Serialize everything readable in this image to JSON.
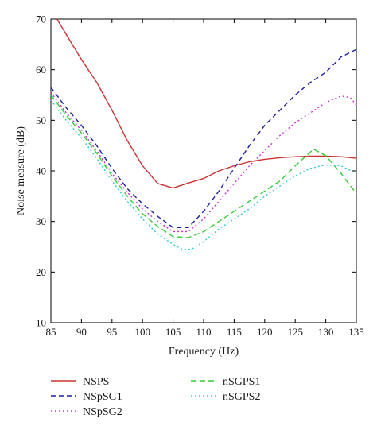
{
  "chart_data": {
    "type": "line",
    "title": "",
    "xlabel": "Frequency (Hz)",
    "ylabel": "Noise measure (dB)",
    "xlim": [
      85,
      135
    ],
    "ylim": [
      10,
      70
    ],
    "xticks": [
      85,
      90,
      95,
      100,
      105,
      110,
      115,
      120,
      125,
      130,
      135
    ],
    "yticks": [
      10,
      20,
      30,
      40,
      50,
      60,
      70
    ],
    "grid": false,
    "legend_position": "bottom",
    "series": [
      {
        "name": "NSPS",
        "color": "#cc3333",
        "dash": "solid",
        "x": [
          86,
          88,
          90,
          92.5,
          95,
          97.5,
          100,
          102.5,
          105,
          107.5,
          110,
          112.5,
          115,
          117.5,
          120,
          122.5,
          125,
          127.5,
          130,
          132.5,
          135
        ],
        "y": [
          70,
          66,
          62,
          57.5,
          52,
          46,
          41,
          37.5,
          36.6,
          37.6,
          38.5,
          40,
          41,
          41.8,
          42.3,
          42.6,
          42.8,
          42.9,
          42.9,
          42.8,
          42.5
        ]
      },
      {
        "name": "NSpSG1",
        "color": "#1f1fa0",
        "dash": "6,4",
        "x": [
          85,
          87.5,
          90,
          92.5,
          95,
          97.5,
          100,
          102.5,
          105,
          107.5,
          110,
          112.5,
          115,
          117.5,
          120,
          122.5,
          125,
          127.5,
          130,
          132.5,
          135
        ],
        "y": [
          56.5,
          52.5,
          49,
          45,
          40.5,
          36.5,
          33.5,
          31,
          28.8,
          28.8,
          32,
          36,
          40.5,
          45,
          49,
          52,
          55,
          57.5,
          59.5,
          62.5,
          64
        ]
      },
      {
        "name": "NSpSG2",
        "color": "#cc33cc",
        "dash": "2,3",
        "x": [
          85,
          87.5,
          90,
          92.5,
          95,
          97.5,
          100,
          102.5,
          105,
          107.5,
          110,
          112.5,
          115,
          117.5,
          120,
          122.5,
          125,
          127.5,
          130,
          132.5,
          134,
          135
        ],
        "y": [
          55.5,
          51.5,
          48,
          44,
          39.5,
          35.8,
          32.5,
          30,
          28,
          28,
          30.5,
          34,
          37.5,
          41,
          44,
          47,
          49.5,
          51.5,
          53.5,
          54.8,
          54.5,
          53
        ]
      },
      {
        "name": "nSGPS1",
        "color": "#33cc33",
        "dash": "7,4",
        "x": [
          85,
          87.5,
          90,
          92.5,
          95,
          97.5,
          100,
          102.5,
          105,
          107.5,
          110,
          112.5,
          115,
          117.5,
          120,
          122.5,
          125,
          128,
          130,
          132.5,
          135
        ],
        "y": [
          55,
          51,
          47.5,
          43.5,
          39,
          35,
          31.5,
          29,
          27,
          26.8,
          28,
          30,
          32,
          34,
          36,
          38,
          41,
          44.3,
          43,
          39.5,
          35.5
        ]
      },
      {
        "name": "nSGPS2",
        "color": "#33cccc",
        "dash": "2,3",
        "x": [
          85,
          87.5,
          90,
          92.5,
          95,
          97.5,
          100,
          102.5,
          105,
          106.5,
          108,
          110,
          112.5,
          115,
          117.5,
          120,
          122.5,
          125,
          127.5,
          130,
          132.5,
          135
        ],
        "y": [
          54,
          50,
          46.5,
          42.5,
          38,
          34,
          30.5,
          27.5,
          25.5,
          24.5,
          24.5,
          26,
          28.5,
          30.5,
          32.5,
          35,
          37,
          39,
          40.5,
          41.2,
          41,
          39.5
        ]
      }
    ]
  }
}
